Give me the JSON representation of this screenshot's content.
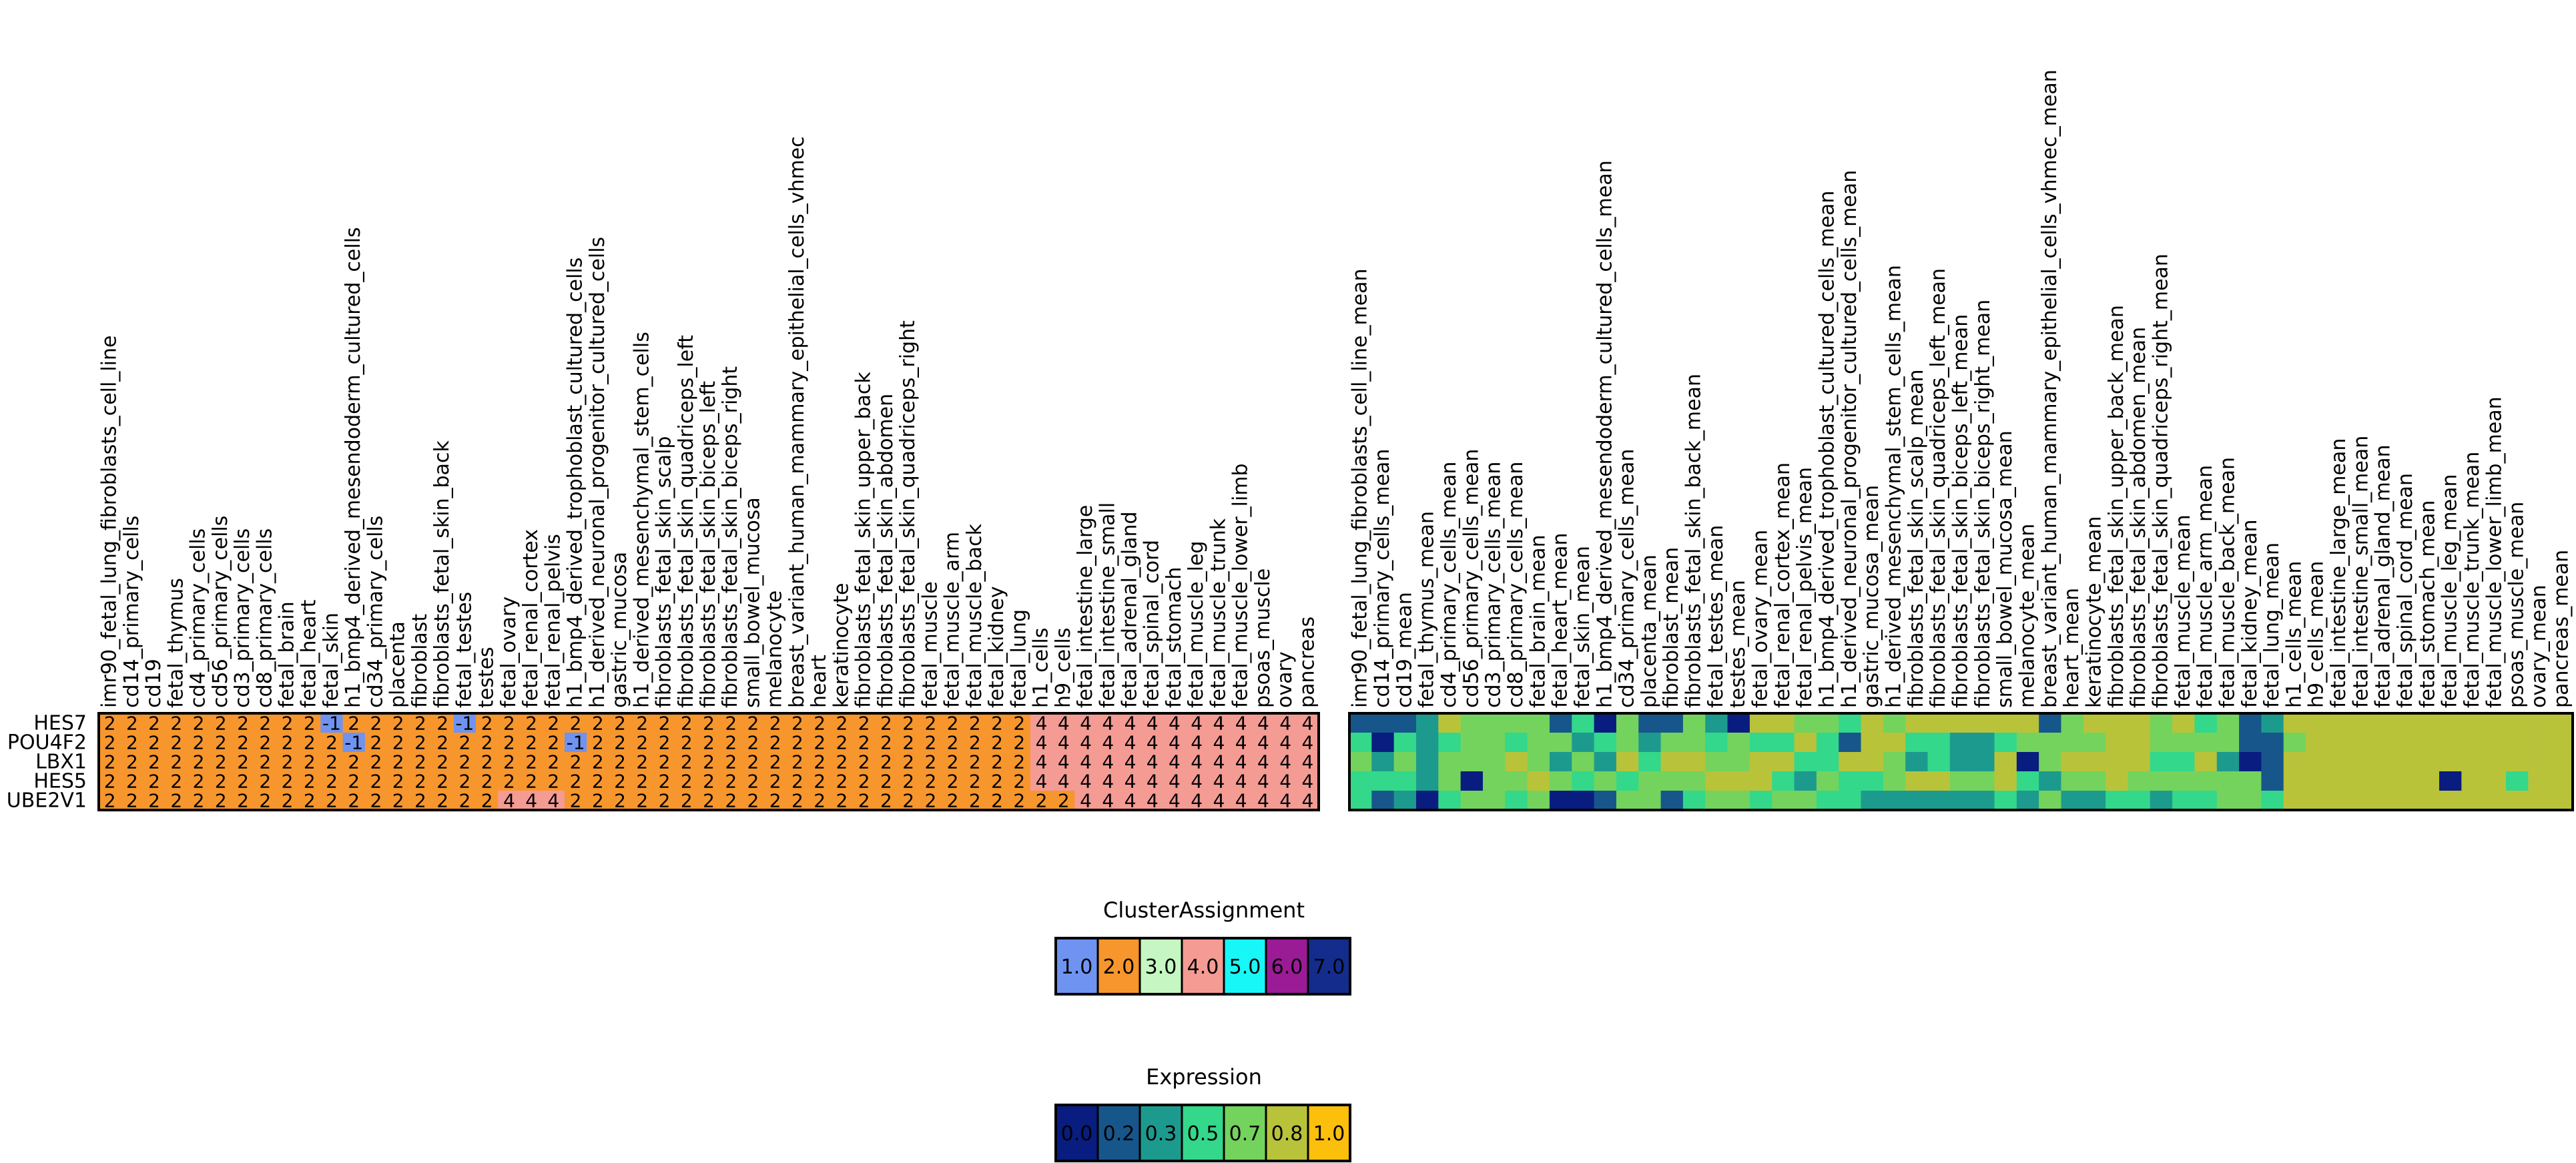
{
  "chart_data": [
    {
      "type": "heatmap",
      "name": "cluster-assignment-heatmap",
      "rows": [
        "HES7",
        "POU4F2",
        "LBX1",
        "HES5",
        "UBE2V1"
      ],
      "columns": [
        "imr90_fetal_lung_fibroblasts_cell_line",
        "cd14_primary_cells",
        "cd19",
        "fetal_thymus",
        "cd4_primary_cells",
        "cd56_primary_cells",
        "cd3_primary_cells",
        "cd8_primary_cells",
        "fetal_brain",
        "fetal_heart",
        "fetal_skin",
        "h1_bmp4_derived_mesendoderm_cultured_cells",
        "cd34_primary_cells",
        "placenta",
        "fibroblast",
        "fibroblasts_fetal_skin_back",
        "fetal_testes",
        "testes",
        "fetal_ovary",
        "fetal_renal_cortex",
        "fetal_renal_pelvis",
        "h1_bmp4_derived_trophoblast_cultured_cells",
        "h1_derived_neuronal_progenitor_cultured_cells",
        "gastric_mucosa",
        "h1_derived_mesenchymal_stem_cells",
        "fibroblasts_fetal_skin_scalp",
        "fibroblasts_fetal_skin_quadriceps_left",
        "fibroblasts_fetal_skin_biceps_left",
        "fibroblasts_fetal_skin_biceps_right",
        "small_bowel_mucosa",
        "melanocyte",
        "breast_variant_human_mammary_epithelial_cells_vhmec",
        "heart",
        "keratinocyte",
        "fibroblasts_fetal_skin_upper_back",
        "fibroblasts_fetal_skin_abdomen",
        "fibroblasts_fetal_skin_quadriceps_right",
        "fetal_muscle",
        "fetal_muscle_arm",
        "fetal_muscle_back",
        "fetal_kidney",
        "fetal_lung",
        "h1_cells",
        "h9_cells",
        "fetal_intestine_large",
        "fetal_intestine_small",
        "fetal_adrenal_gland",
        "fetal_spinal_cord",
        "fetal_stomach",
        "fetal_muscle_leg",
        "fetal_muscle_trunk",
        "fetal_muscle_lower_limb",
        "psoas_muscle",
        "ovary",
        "pancreas"
      ],
      "values": [
        [
          2,
          2,
          2,
          2,
          2,
          2,
          2,
          2,
          2,
          2,
          -1,
          2,
          2,
          2,
          2,
          2,
          -1,
          2,
          2,
          2,
          2,
          2,
          2,
          2,
          2,
          2,
          2,
          2,
          2,
          2,
          2,
          2,
          2,
          2,
          2,
          2,
          2,
          2,
          2,
          2,
          2,
          2,
          4,
          4,
          4,
          4,
          4,
          4,
          4,
          4,
          4,
          4,
          4,
          4,
          4
        ],
        [
          2,
          2,
          2,
          2,
          2,
          2,
          2,
          2,
          2,
          2,
          2,
          -1,
          2,
          2,
          2,
          2,
          2,
          2,
          2,
          2,
          2,
          -1,
          2,
          2,
          2,
          2,
          2,
          2,
          2,
          2,
          2,
          2,
          2,
          2,
          2,
          2,
          2,
          2,
          2,
          2,
          2,
          2,
          4,
          4,
          4,
          4,
          4,
          4,
          4,
          4,
          4,
          4,
          4,
          4,
          4
        ],
        [
          2,
          2,
          2,
          2,
          2,
          2,
          2,
          2,
          2,
          2,
          2,
          2,
          2,
          2,
          2,
          2,
          2,
          2,
          2,
          2,
          2,
          2,
          2,
          2,
          2,
          2,
          2,
          2,
          2,
          2,
          2,
          2,
          2,
          2,
          2,
          2,
          2,
          2,
          2,
          2,
          2,
          2,
          4,
          4,
          4,
          4,
          4,
          4,
          4,
          4,
          4,
          4,
          4,
          4,
          4
        ],
        [
          2,
          2,
          2,
          2,
          2,
          2,
          2,
          2,
          2,
          2,
          2,
          2,
          2,
          2,
          2,
          2,
          2,
          2,
          2,
          2,
          2,
          2,
          2,
          2,
          2,
          2,
          2,
          2,
          2,
          2,
          2,
          2,
          2,
          2,
          2,
          2,
          2,
          2,
          2,
          2,
          2,
          2,
          4,
          4,
          4,
          4,
          4,
          4,
          4,
          4,
          4,
          4,
          4,
          4,
          4
        ],
        [
          2,
          2,
          2,
          2,
          2,
          2,
          2,
          2,
          2,
          2,
          2,
          2,
          2,
          2,
          2,
          2,
          2,
          2,
          4,
          4,
          4,
          2,
          2,
          2,
          2,
          2,
          2,
          2,
          2,
          2,
          2,
          2,
          2,
          2,
          2,
          2,
          2,
          2,
          2,
          2,
          2,
          2,
          2,
          2,
          4,
          4,
          4,
          4,
          4,
          4,
          4,
          4,
          4,
          4,
          4
        ]
      ],
      "cell_labels": true
    },
    {
      "type": "heatmap",
      "name": "expression-heatmap",
      "rows": [
        "HES7",
        "POU4F2",
        "LBX1",
        "HES5",
        "UBE2V1"
      ],
      "columns": [
        "imr90_fetal_lung_fibroblasts_cell_line_mean",
        "cd14_primary_cells_mean",
        "cd19_mean",
        "fetal_thymus_mean",
        "cd4_primary_cells_mean",
        "cd56_primary_cells_mean",
        "cd3_primary_cells_mean",
        "cd8_primary_cells_mean",
        "fetal_brain_mean",
        "fetal_heart_mean",
        "fetal_skin_mean",
        "h1_bmp4_derived_mesendoderm_cultured_cells_mean",
        "cd34_primary_cells_mean",
        "placenta_mean",
        "fibroblast_mean",
        "fibroblasts_fetal_skin_back_mean",
        "fetal_testes_mean",
        "testes_mean",
        "fetal_ovary_mean",
        "fetal_renal_cortex_mean",
        "fetal_renal_pelvis_mean",
        "h1_bmp4_derived_trophoblast_cultured_cells_mean",
        "h1_derived_neuronal_progenitor_cultured_cells_mean",
        "gastric_mucosa_mean",
        "h1_derived_mesenchymal_stem_cells_mean",
        "fibroblasts_fetal_skin_scalp_mean",
        "fibroblasts_fetal_skin_quadriceps_left_mean",
        "fibroblasts_fetal_skin_biceps_left_mean",
        "fibroblasts_fetal_skin_biceps_right_mean",
        "small_bowel_mucosa_mean",
        "melanocyte_mean",
        "breast_variant_human_mammary_epithelial_cells_vhmec_mean",
        "heart_mean",
        "keratinocyte_mean",
        "fibroblasts_fetal_skin_upper_back_mean",
        "fibroblasts_fetal_skin_abdomen_mean",
        "fibroblasts_fetal_skin_quadriceps_right_mean",
        "fetal_muscle_mean",
        "fetal_muscle_arm_mean",
        "fetal_muscle_back_mean",
        "fetal_kidney_mean",
        "fetal_lung_mean",
        "h1_cells_mean",
        "h9_cells_mean",
        "fetal_intestine_large_mean",
        "fetal_intestine_small_mean",
        "fetal_adrenal_gland_mean",
        "fetal_spinal_cord_mean",
        "fetal_stomach_mean",
        "fetal_muscle_leg_mean",
        "fetal_muscle_trunk_mean",
        "fetal_muscle_lower_limb_mean",
        "psoas_muscle_mean",
        "ovary_mean",
        "pancreas_mean"
      ],
      "values": [
        [
          0.1,
          0.1,
          0.1,
          0.3,
          0.8,
          0.7,
          0.7,
          0.7,
          0.6,
          0.2,
          0.5,
          0.0,
          0.6,
          0.2,
          0.2,
          0.6,
          0.3,
          0.0,
          0.9,
          0.9,
          0.6,
          0.6,
          0.5,
          0.8,
          0.7,
          0.9,
          0.9,
          0.9,
          0.9,
          0.8,
          0.8,
          0.1,
          0.7,
          0.8,
          0.9,
          0.9,
          0.7,
          0.9,
          0.5,
          0.7,
          0.2,
          0.3,
          0.8,
          0.8,
          0.9,
          0.9,
          0.9,
          0.8,
          0.9,
          0.8,
          0.9,
          0.9,
          0.8,
          0.8,
          0.8
        ],
        [
          0.5,
          0.0,
          0.5,
          0.3,
          0.5,
          0.7,
          0.7,
          0.5,
          0.6,
          0.7,
          0.3,
          0.5,
          0.6,
          0.3,
          0.6,
          0.6,
          0.5,
          0.7,
          0.5,
          0.5,
          0.8,
          0.5,
          0.1,
          0.8,
          0.8,
          0.5,
          0.5,
          0.3,
          0.3,
          0.5,
          0.6,
          0.6,
          0.7,
          0.7,
          0.8,
          0.9,
          0.7,
          0.7,
          0.6,
          0.6,
          0.2,
          0.1,
          0.6,
          0.8,
          0.8,
          0.8,
          0.9,
          0.8,
          0.8,
          0.8,
          0.9,
          0.8,
          0.8,
          0.8,
          0.8
        ],
        [
          0.6,
          0.4,
          0.7,
          0.3,
          0.7,
          0.7,
          0.6,
          0.8,
          0.7,
          0.3,
          0.6,
          0.3,
          0.8,
          0.5,
          0.8,
          0.8,
          0.7,
          0.7,
          0.8,
          0.8,
          0.5,
          0.5,
          0.8,
          0.8,
          0.6,
          0.4,
          0.5,
          0.4,
          0.4,
          0.8,
          0.0,
          0.6,
          0.8,
          0.8,
          0.8,
          0.8,
          0.5,
          0.5,
          0.8,
          0.4,
          0.0,
          0.1,
          0.8,
          0.8,
          0.9,
          0.9,
          0.8,
          0.8,
          0.8,
          0.8,
          0.8,
          0.8,
          0.8,
          0.8,
          0.8
        ],
        [
          0.5,
          0.5,
          0.5,
          0.4,
          0.7,
          0.0,
          0.7,
          0.7,
          0.8,
          0.7,
          0.5,
          0.7,
          0.5,
          0.7,
          0.7,
          0.6,
          0.8,
          0.8,
          0.9,
          0.5,
          0.3,
          0.6,
          0.5,
          0.5,
          0.7,
          0.8,
          0.8,
          0.7,
          0.7,
          0.9,
          0.5,
          0.3,
          0.7,
          0.7,
          0.8,
          0.6,
          0.6,
          0.7,
          0.7,
          0.7,
          0.7,
          0.2,
          0.8,
          0.8,
          0.8,
          0.8,
          0.8,
          0.8,
          0.9,
          0.0,
          0.8,
          0.8,
          0.5,
          0.8,
          0.8
        ],
        [
          0.5,
          0.2,
          0.3,
          0.0,
          0.5,
          0.7,
          0.6,
          0.5,
          0.7,
          0.0,
          0.0,
          0.1,
          0.6,
          0.6,
          0.2,
          0.5,
          0.6,
          0.7,
          0.5,
          0.6,
          0.6,
          0.5,
          0.5,
          0.4,
          0.3,
          0.3,
          0.3,
          0.4,
          0.4,
          0.5,
          0.3,
          0.7,
          0.4,
          0.4,
          0.5,
          0.5,
          0.4,
          0.5,
          0.5,
          0.6,
          0.6,
          0.5,
          0.8,
          0.8,
          0.8,
          0.8,
          0.8,
          0.8,
          0.8,
          0.8,
          0.8,
          0.8,
          0.8,
          0.8,
          0.8
        ]
      ],
      "cell_labels": false
    }
  ],
  "legends": [
    {
      "name": "cluster-assignment-legend",
      "title": "ClusterAssignment",
      "entries": [
        {
          "label": "1.0",
          "color": "#6f93f1"
        },
        {
          "label": "2.0",
          "color": "#f7962d"
        },
        {
          "label": "3.0",
          "color": "#c6f7c2"
        },
        {
          "label": "4.0",
          "color": "#f49b94"
        },
        {
          "label": "5.0",
          "color": "#17f7f7"
        },
        {
          "label": "6.0",
          "color": "#9b1b96"
        },
        {
          "label": "7.0",
          "color": "#142c8c"
        }
      ]
    },
    {
      "name": "expression-legend",
      "title": "Expression",
      "entries": [
        {
          "label": "0.0",
          "color": "#081d7f"
        },
        {
          "label": "0.2",
          "color": "#17568a"
        },
        {
          "label": "0.3",
          "color": "#1d9a8e"
        },
        {
          "label": "0.5",
          "color": "#33d88b"
        },
        {
          "label": "0.7",
          "color": "#74d35c"
        },
        {
          "label": "0.8",
          "color": "#b8c33a"
        },
        {
          "label": "1.0",
          "color": "#fcbf0c"
        }
      ]
    }
  ],
  "cluster_colors": {
    "-1": "#6f93f1",
    "2": "#f7962d",
    "4": "#f49b94"
  },
  "expression_scale": [
    "#081d7f",
    "#17568a",
    "#1d9a8e",
    "#33d88b",
    "#74d35c",
    "#b8c33a",
    "#fcbf0c"
  ]
}
